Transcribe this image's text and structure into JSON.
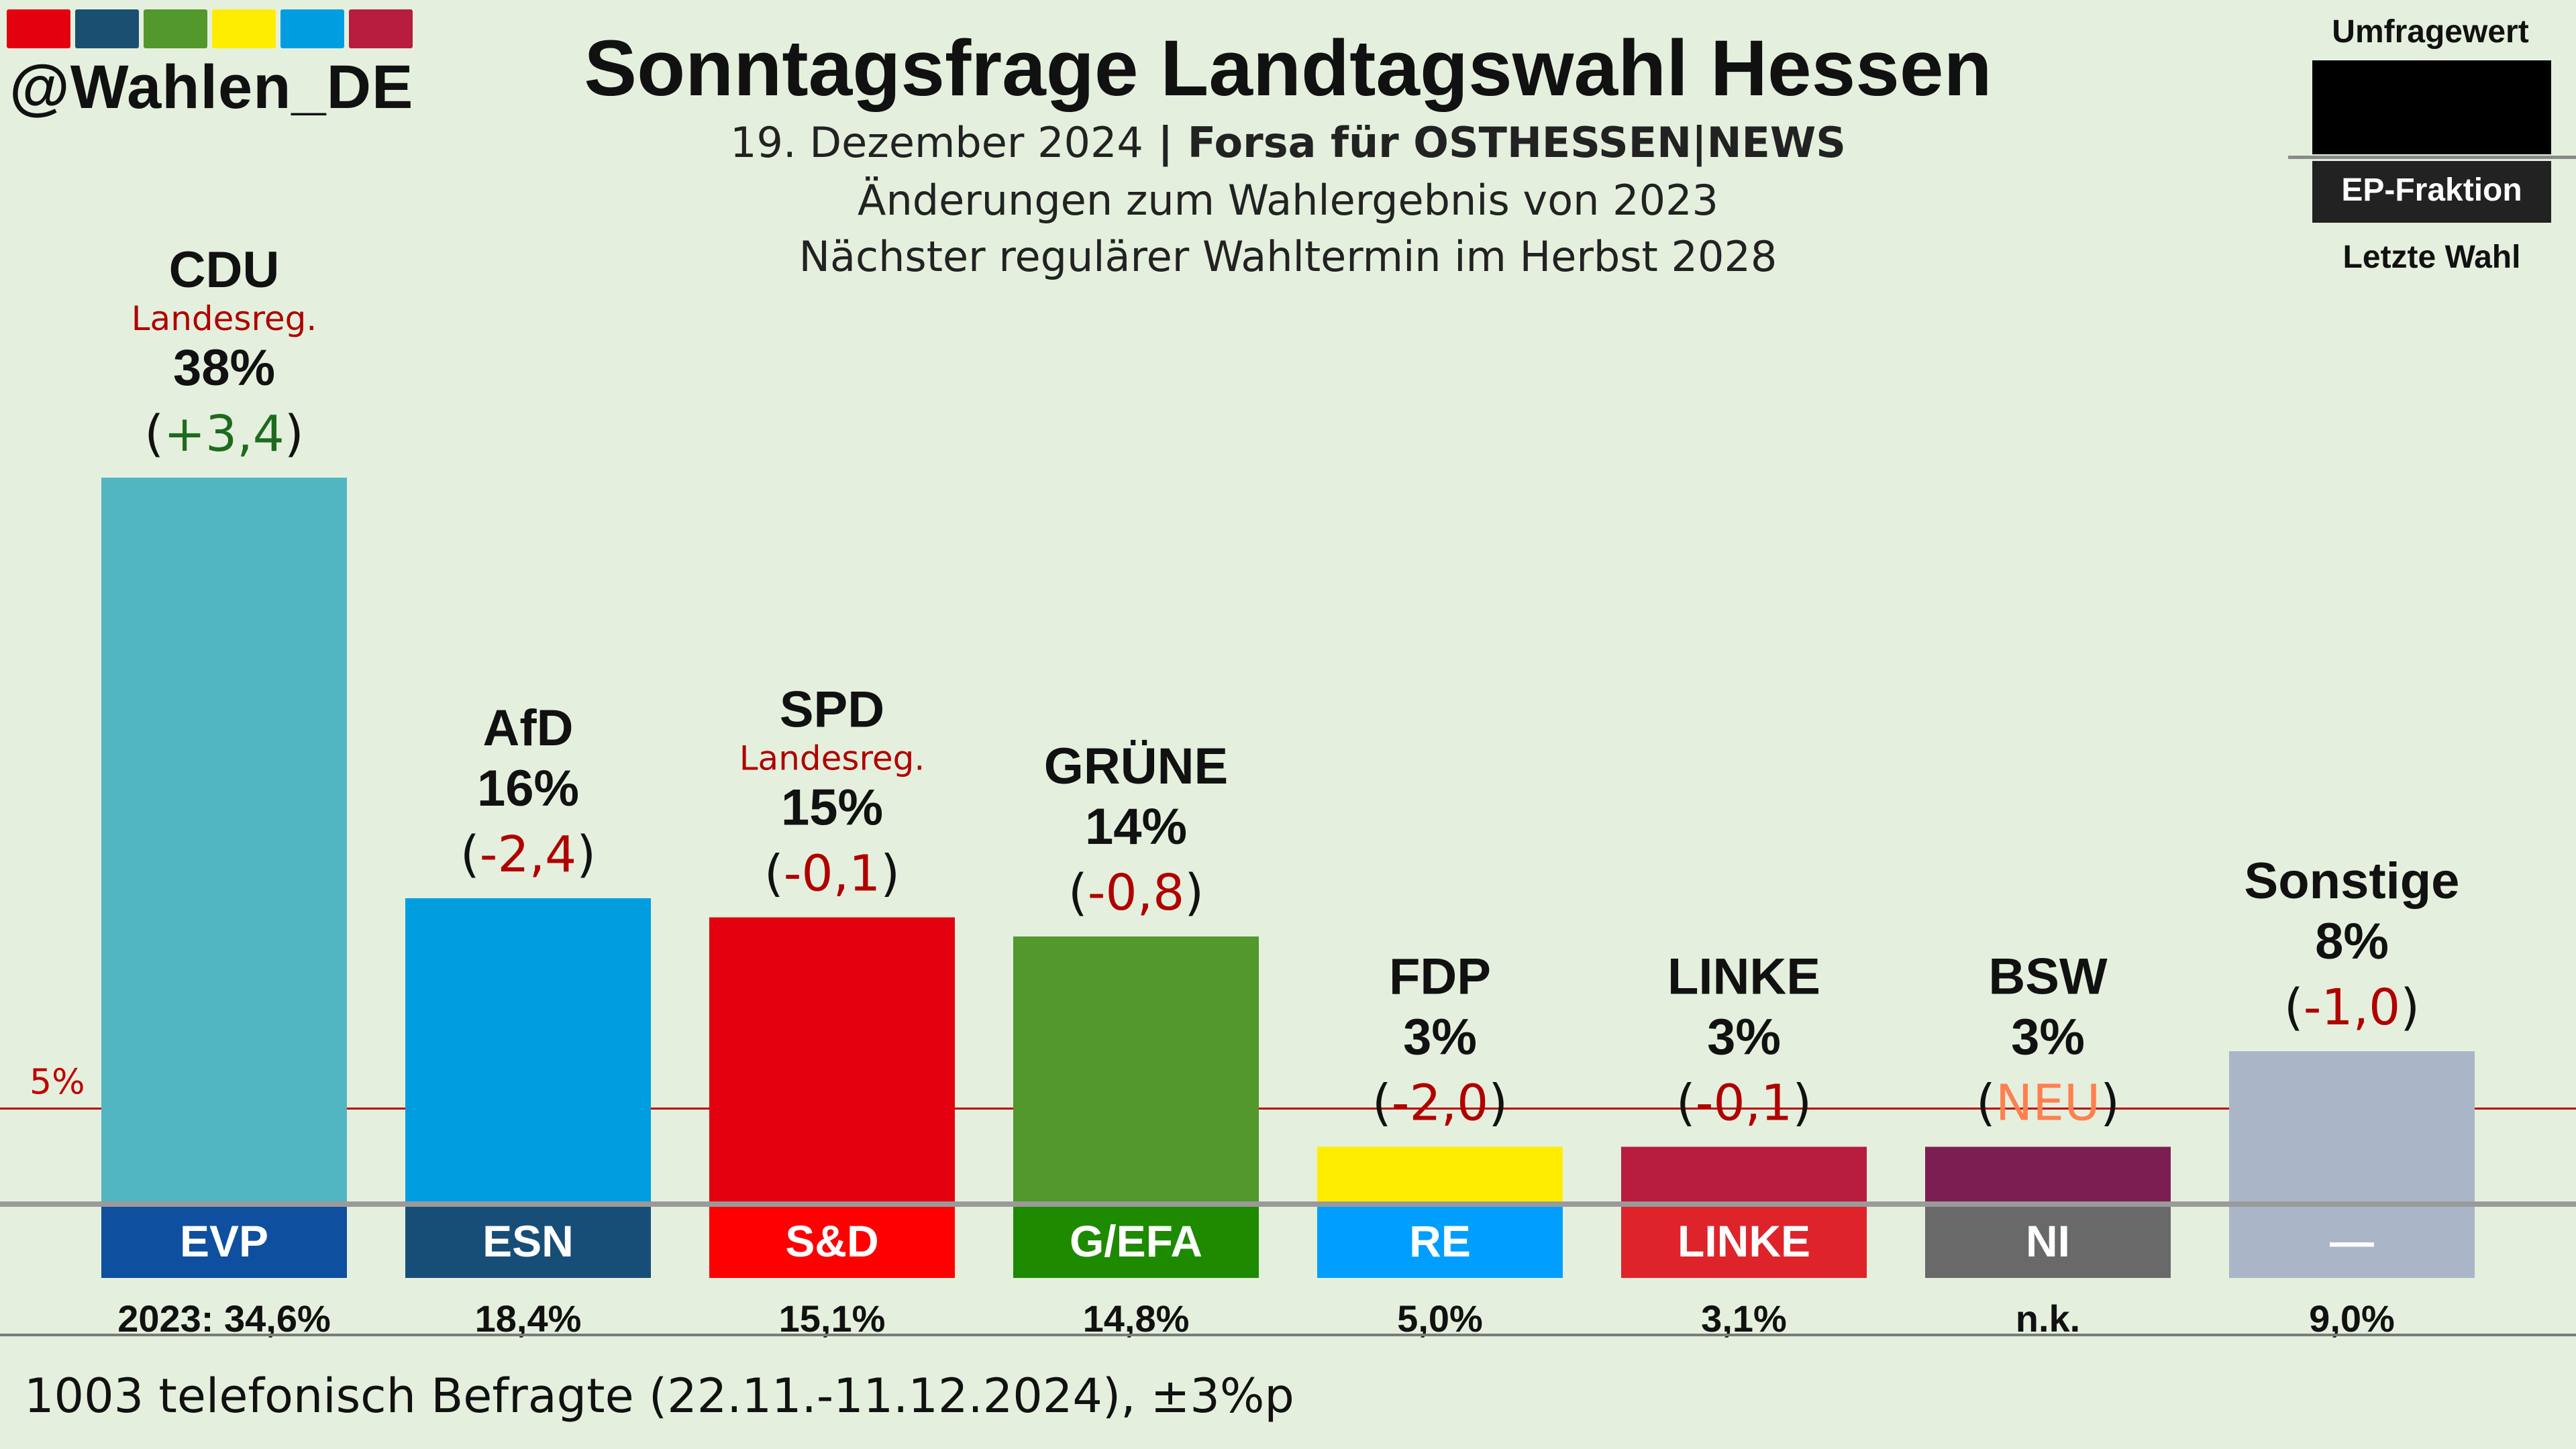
{
  "header": {
    "handle": "@Wahlen_DE",
    "logo_colors": [
      "#e3000f",
      "#1b4f72",
      "#52982c",
      "#ffed00",
      "#009ee0",
      "#b81c3e"
    ],
    "title": "Sonntagsfrage Landtagswahl Hessen",
    "subtitle_date": "19. Dezember 2024",
    "subtitle_sep": " | ",
    "subtitle_source": "Forsa für OSTHESSEN|NEWS",
    "line2": "Änderungen zum Wahlergebnis von 2023",
    "line3": "Nächster regulärer Wahltermin im Herbst 2028"
  },
  "legend": {
    "top_label": "Umfragewert",
    "middle_label": "EP-Fraktion",
    "bottom_label": "Letzte Wahl"
  },
  "footer": {
    "text": "1003 telefonisch Befragte (22.11.-11.12.2024), ±3%p"
  },
  "chart_data": {
    "type": "bar",
    "categories": [
      "CDU",
      "AfD",
      "SPD",
      "GRÜNE",
      "FDP",
      "LINKE",
      "BSW",
      "Sonstige"
    ],
    "values": [
      38,
      16,
      15,
      14,
      3,
      3,
      3,
      8
    ],
    "value_labels": [
      "38%",
      "16%",
      "15%",
      "14%",
      "3%",
      "3%",
      "3%",
      "8%"
    ],
    "changes": [
      "+3,4",
      "-2,4",
      "-0,1",
      "-0,8",
      "-2,0",
      "-0,1",
      "NEU",
      "-1,0"
    ],
    "change_colors": [
      "#1e6b1e",
      "#b00000",
      "#b00000",
      "#b00000",
      "#b00000",
      "#b00000",
      "#ff7f50",
      "#b00000"
    ],
    "government_notes": [
      "Landesreg.",
      "",
      "Landesreg.",
      "",
      "",
      "",
      "",
      ""
    ],
    "bar_colors": [
      "#52b5c2",
      "#009ee0",
      "#e3000f",
      "#52982c",
      "#ffed00",
      "#b81c3e",
      "#7b1f52",
      "#aab6c8"
    ],
    "ep_groups": [
      "EVP",
      "ESN",
      "S&D",
      "G/EFA",
      "RE",
      "LINKE",
      "NI",
      "—"
    ],
    "ep_colors": [
      "#0e4fa0",
      "#174e78",
      "#ff0000",
      "#1e8a00",
      "#009fff",
      "#de242a",
      "#696969",
      "#aab6c8"
    ],
    "last_election": [
      "2023: 34,6%",
      "18,4%",
      "15,1%",
      "14,8%",
      "5,0%",
      "3,1%",
      "n.k.",
      "9,0%"
    ],
    "threshold_label": "5%",
    "threshold_value": 5,
    "threshold_color": "#c00000"
  }
}
